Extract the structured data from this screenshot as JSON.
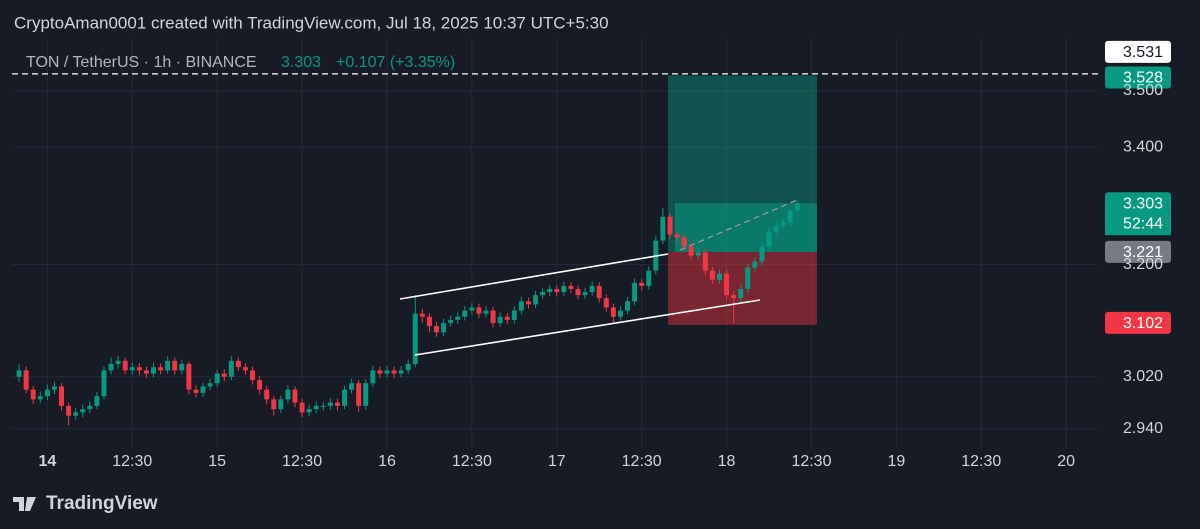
{
  "header": {
    "attribution": "CryptoAman0001 created with TradingView.com, Jul 18, 2025 10:37 UTC+5:30"
  },
  "chart_data": {
    "type": "candlestick",
    "symbol": "TON / TetherUS · 1h · BINANCE",
    "last_price": 3.303,
    "change_label": "+0.107 (+3.35%)",
    "countdown": "52:44",
    "up_color": "#089981",
    "down_color": "#f23645",
    "log_scale": true,
    "grid": true,
    "xlim": [
      -5,
      148.5
    ],
    "xticks": [
      {
        "value": 0,
        "label": "14"
      },
      {
        "value": 12,
        "label": "12:30"
      },
      {
        "value": 24,
        "label": "15"
      },
      {
        "value": 36,
        "label": "12:30"
      },
      {
        "value": 48,
        "label": "16"
      },
      {
        "value": 60,
        "label": "12:30"
      },
      {
        "value": 72,
        "label": "17"
      },
      {
        "value": 84,
        "label": "12:30"
      },
      {
        "value": 96,
        "label": "18"
      },
      {
        "value": 108,
        "label": "12:30"
      },
      {
        "value": 120,
        "label": "19"
      },
      {
        "value": 132,
        "label": "12:30"
      },
      {
        "value": 144,
        "label": "20"
      }
    ],
    "ylim": [
      2.911,
      3.597
    ],
    "yticks": [
      {
        "value": 3.5,
        "label": "3.500"
      },
      {
        "value": 3.4,
        "label": "3.400"
      },
      {
        "value": 3.2,
        "label": "3.200"
      },
      {
        "value": 3.02,
        "label": "3.020"
      },
      {
        "value": 2.94,
        "label": "2.940"
      }
    ],
    "position": {
      "target": 3.528,
      "entry": 3.221,
      "stop": 3.102
    },
    "alert_level": 3.531,
    "x": [
      -4,
      -3,
      -2,
      -1,
      0,
      1,
      2,
      3,
      4,
      5,
      6,
      7,
      8,
      9,
      10,
      11,
      12,
      13,
      14,
      15,
      16,
      17,
      18,
      19,
      20,
      21,
      22,
      23,
      24,
      25,
      26,
      27,
      28,
      29,
      30,
      31,
      32,
      33,
      34,
      35,
      36,
      37,
      38,
      39,
      40,
      41,
      42,
      43,
      44,
      45,
      46,
      47,
      48,
      49,
      50,
      51,
      52,
      53,
      54,
      55,
      56,
      57,
      58,
      59,
      60,
      61,
      62,
      63,
      64,
      65,
      66,
      67,
      68,
      69,
      70,
      71,
      72,
      73,
      74,
      75,
      76,
      77,
      78,
      79,
      80,
      81,
      82,
      83,
      84,
      85,
      86,
      87,
      88,
      89,
      90,
      91,
      92,
      93,
      94,
      95,
      96,
      97,
      98,
      99,
      100,
      101,
      102,
      103,
      104,
      105,
      106
    ],
    "candles": [
      [
        3.02,
        3.04,
        3.012,
        3.03
      ],
      [
        3.03,
        3.036,
        2.994,
        3.0
      ],
      [
        3.0,
        3.006,
        2.978,
        2.985
      ],
      [
        2.985,
        2.997,
        2.979,
        2.99
      ],
      [
        2.99,
        3.008,
        2.984,
        3.0
      ],
      [
        3.0,
        3.012,
        2.993,
        3.005
      ],
      [
        3.005,
        3.01,
        2.968,
        2.975
      ],
      [
        2.975,
        2.98,
        2.945,
        2.96
      ],
      [
        2.96,
        2.972,
        2.954,
        2.965
      ],
      [
        2.965,
        2.977,
        2.958,
        2.97
      ],
      [
        2.97,
        2.982,
        2.964,
        2.975
      ],
      [
        2.975,
        2.996,
        2.97,
        2.99
      ],
      [
        2.99,
        3.036,
        2.985,
        3.03
      ],
      [
        3.03,
        3.05,
        3.024,
        3.04
      ],
      [
        3.04,
        3.053,
        3.033,
        3.045
      ],
      [
        3.045,
        3.05,
        3.024,
        3.03
      ],
      [
        3.03,
        3.042,
        3.023,
        3.035
      ],
      [
        3.035,
        3.041,
        3.022,
        3.03
      ],
      [
        3.03,
        3.036,
        3.018,
        3.025
      ],
      [
        3.025,
        3.042,
        3.019,
        3.035
      ],
      [
        3.035,
        3.041,
        3.024,
        3.03
      ],
      [
        3.03,
        3.052,
        3.025,
        3.045
      ],
      [
        3.045,
        3.05,
        3.023,
        3.03
      ],
      [
        3.03,
        3.047,
        3.024,
        3.04
      ],
      [
        3.04,
        3.044,
        2.993,
        3.0
      ],
      [
        3.0,
        3.007,
        2.988,
        2.995
      ],
      [
        2.995,
        3.011,
        2.989,
        3.005
      ],
      [
        3.005,
        3.017,
        2.999,
        3.01
      ],
      [
        3.01,
        3.031,
        3.004,
        3.025
      ],
      [
        3.025,
        3.032,
        3.013,
        3.02
      ],
      [
        3.02,
        3.052,
        3.015,
        3.045
      ],
      [
        3.045,
        3.05,
        3.029,
        3.035
      ],
      [
        3.035,
        3.041,
        3.023,
        3.03
      ],
      [
        3.03,
        3.036,
        3.008,
        3.015
      ],
      [
        3.015,
        3.021,
        2.993,
        3.0
      ],
      [
        3.0,
        3.006,
        2.978,
        2.985
      ],
      [
        2.985,
        2.99,
        2.96,
        2.97
      ],
      [
        2.97,
        2.991,
        2.964,
        2.985
      ],
      [
        2.985,
        3.007,
        2.979,
        3.0
      ],
      [
        3.0,
        3.005,
        2.973,
        2.98
      ],
      [
        2.98,
        2.986,
        2.958,
        2.965
      ],
      [
        2.965,
        2.977,
        2.959,
        2.97
      ],
      [
        2.97,
        2.982,
        2.964,
        2.975
      ],
      [
        2.975,
        2.981,
        2.968,
        2.975
      ],
      [
        2.975,
        2.987,
        2.969,
        2.98
      ],
      [
        2.98,
        2.986,
        2.968,
        2.975
      ],
      [
        2.975,
        3.006,
        2.97,
        3.0
      ],
      [
        3.0,
        3.017,
        2.994,
        3.01
      ],
      [
        3.01,
        3.015,
        2.966,
        2.975
      ],
      [
        2.975,
        3.016,
        2.969,
        3.01
      ],
      [
        3.01,
        3.037,
        3.004,
        3.03
      ],
      [
        3.03,
        3.036,
        3.018,
        3.025
      ],
      [
        3.025,
        3.037,
        3.019,
        3.03
      ],
      [
        3.03,
        3.036,
        3.018,
        3.025
      ],
      [
        3.025,
        3.037,
        3.019,
        3.03
      ],
      [
        3.03,
        3.047,
        3.024,
        3.04
      ],
      [
        3.04,
        3.15,
        3.035,
        3.12
      ],
      [
        3.12,
        3.128,
        3.105,
        3.115
      ],
      [
        3.115,
        3.121,
        3.09,
        3.1
      ],
      [
        3.1,
        3.106,
        3.083,
        3.09
      ],
      [
        3.09,
        3.112,
        3.084,
        3.105
      ],
      [
        3.105,
        3.117,
        3.099,
        3.11
      ],
      [
        3.11,
        3.122,
        3.104,
        3.115
      ],
      [
        3.115,
        3.132,
        3.109,
        3.125
      ],
      [
        3.125,
        3.137,
        3.119,
        3.13
      ],
      [
        3.13,
        3.136,
        3.113,
        3.12
      ],
      [
        3.12,
        3.132,
        3.114,
        3.125
      ],
      [
        3.125,
        3.131,
        3.098,
        3.105
      ],
      [
        3.105,
        3.122,
        3.099,
        3.115
      ],
      [
        3.115,
        3.121,
        3.103,
        3.11
      ],
      [
        3.11,
        3.132,
        3.104,
        3.125
      ],
      [
        3.125,
        3.147,
        3.119,
        3.14
      ],
      [
        3.14,
        3.146,
        3.128,
        3.135
      ],
      [
        3.135,
        3.157,
        3.129,
        3.15
      ],
      [
        3.15,
        3.162,
        3.144,
        3.155
      ],
      [
        3.155,
        3.167,
        3.149,
        3.16
      ],
      [
        3.16,
        3.166,
        3.148,
        3.155
      ],
      [
        3.155,
        3.172,
        3.149,
        3.165
      ],
      [
        3.165,
        3.171,
        3.153,
        3.16
      ],
      [
        3.16,
        3.166,
        3.143,
        3.15
      ],
      [
        3.15,
        3.162,
        3.144,
        3.155
      ],
      [
        3.155,
        3.172,
        3.149,
        3.165
      ],
      [
        3.165,
        3.171,
        3.138,
        3.145
      ],
      [
        3.145,
        3.151,
        3.123,
        3.13
      ],
      [
        3.13,
        3.136,
        3.105,
        3.115
      ],
      [
        3.115,
        3.132,
        3.109,
        3.125
      ],
      [
        3.125,
        3.147,
        3.119,
        3.14
      ],
      [
        3.14,
        3.177,
        3.134,
        3.17
      ],
      [
        3.17,
        3.176,
        3.158,
        3.165
      ],
      [
        3.165,
        3.197,
        3.159,
        3.19
      ],
      [
        3.19,
        3.247,
        3.184,
        3.24
      ],
      [
        3.24,
        3.295,
        3.234,
        3.28
      ],
      [
        3.28,
        3.286,
        3.243,
        3.25
      ],
      [
        3.25,
        3.256,
        3.238,
        3.245
      ],
      [
        3.245,
        3.251,
        3.223,
        3.23
      ],
      [
        3.23,
        3.236,
        3.208,
        3.215
      ],
      [
        3.215,
        3.227,
        3.209,
        3.22
      ],
      [
        3.22,
        3.226,
        3.183,
        3.19
      ],
      [
        3.19,
        3.196,
        3.168,
        3.175
      ],
      [
        3.175,
        3.192,
        3.169,
        3.185
      ],
      [
        3.185,
        3.191,
        3.143,
        3.15
      ],
      [
        3.15,
        3.156,
        3.105,
        3.145
      ],
      [
        3.145,
        3.167,
        3.139,
        3.16
      ],
      [
        3.16,
        3.202,
        3.154,
        3.195
      ],
      [
        3.195,
        3.212,
        3.189,
        3.205
      ],
      [
        3.205,
        3.237,
        3.199,
        3.23
      ],
      [
        3.23,
        3.262,
        3.224,
        3.255
      ],
      [
        3.255,
        3.272,
        3.249,
        3.265
      ],
      [
        3.265,
        3.277,
        3.259,
        3.27
      ],
      [
        3.27,
        3.297,
        3.264,
        3.29
      ],
      [
        3.29,
        3.308,
        3.284,
        3.303
      ]
    ]
  },
  "footer": {
    "brand": "TradingView"
  }
}
